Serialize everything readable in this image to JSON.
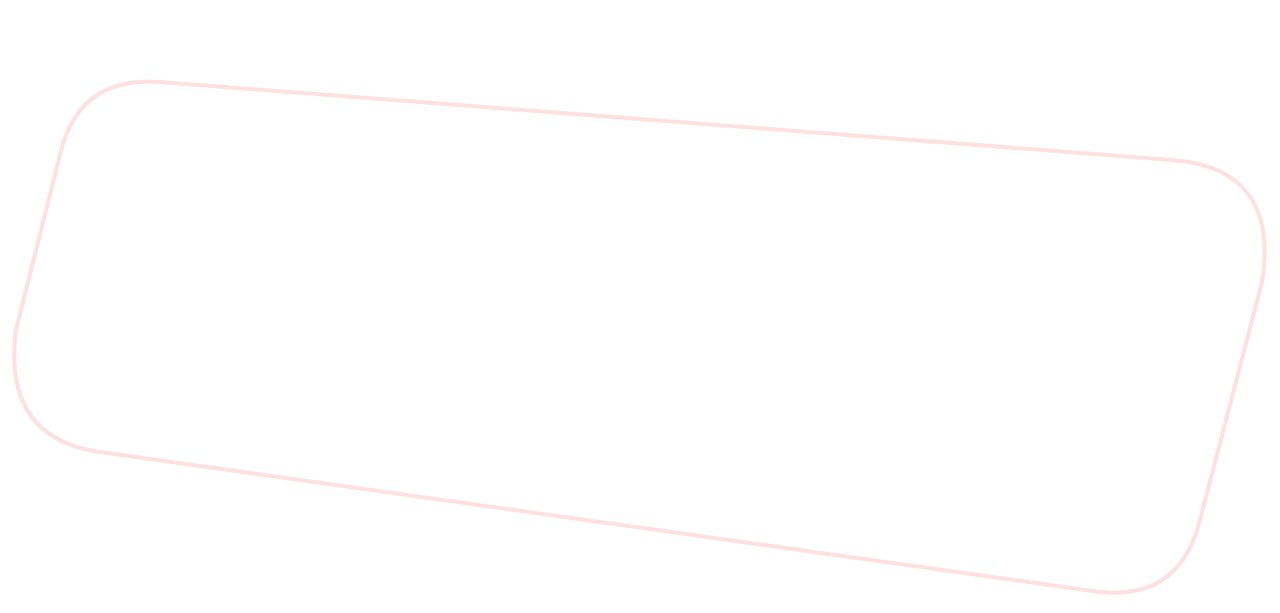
{
  "shape": {
    "stroke_color": "#ffe0e0",
    "fill_color": "none"
  }
}
